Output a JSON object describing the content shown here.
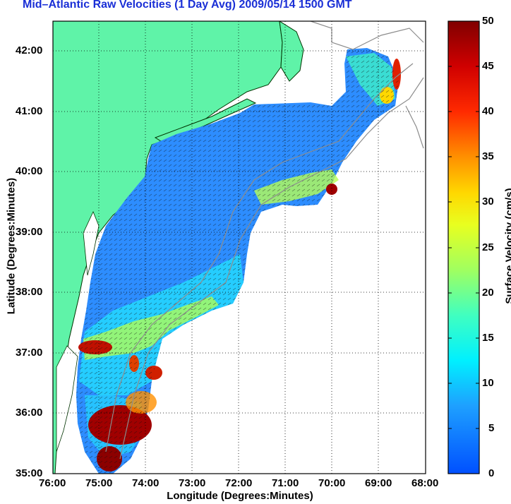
{
  "title": "Mid–Atlantic Raw Velocities (1 Day Avg) 2009/05/14 1500 GMT",
  "xlabel": "Longitude (Degrees:Minutes)",
  "ylabel": "Latitude (Degrees:Minutes)",
  "x_ticks": [
    "76:00",
    "75:00",
    "74:00",
    "73:00",
    "72:00",
    "71:00",
    "70:00",
    "69:00",
    "68:00"
  ],
  "y_ticks": [
    "42:00",
    "41:00",
    "40:00",
    "39:00",
    "38:00",
    "37:00",
    "36:00",
    "35:00"
  ],
  "colorbar": {
    "label": "Surface Velocity (cm/s)",
    "ticks": [
      "50",
      "45",
      "40",
      "35",
      "30",
      "25",
      "20",
      "15",
      "10",
      "5",
      "0"
    ],
    "min": 0,
    "max": 50
  },
  "colors": {
    "title": "#1a2fd6",
    "land": "#5ff3a8",
    "coast": "#003300",
    "bathymetry": "#8c8c8c",
    "grid": "#000000"
  }
}
